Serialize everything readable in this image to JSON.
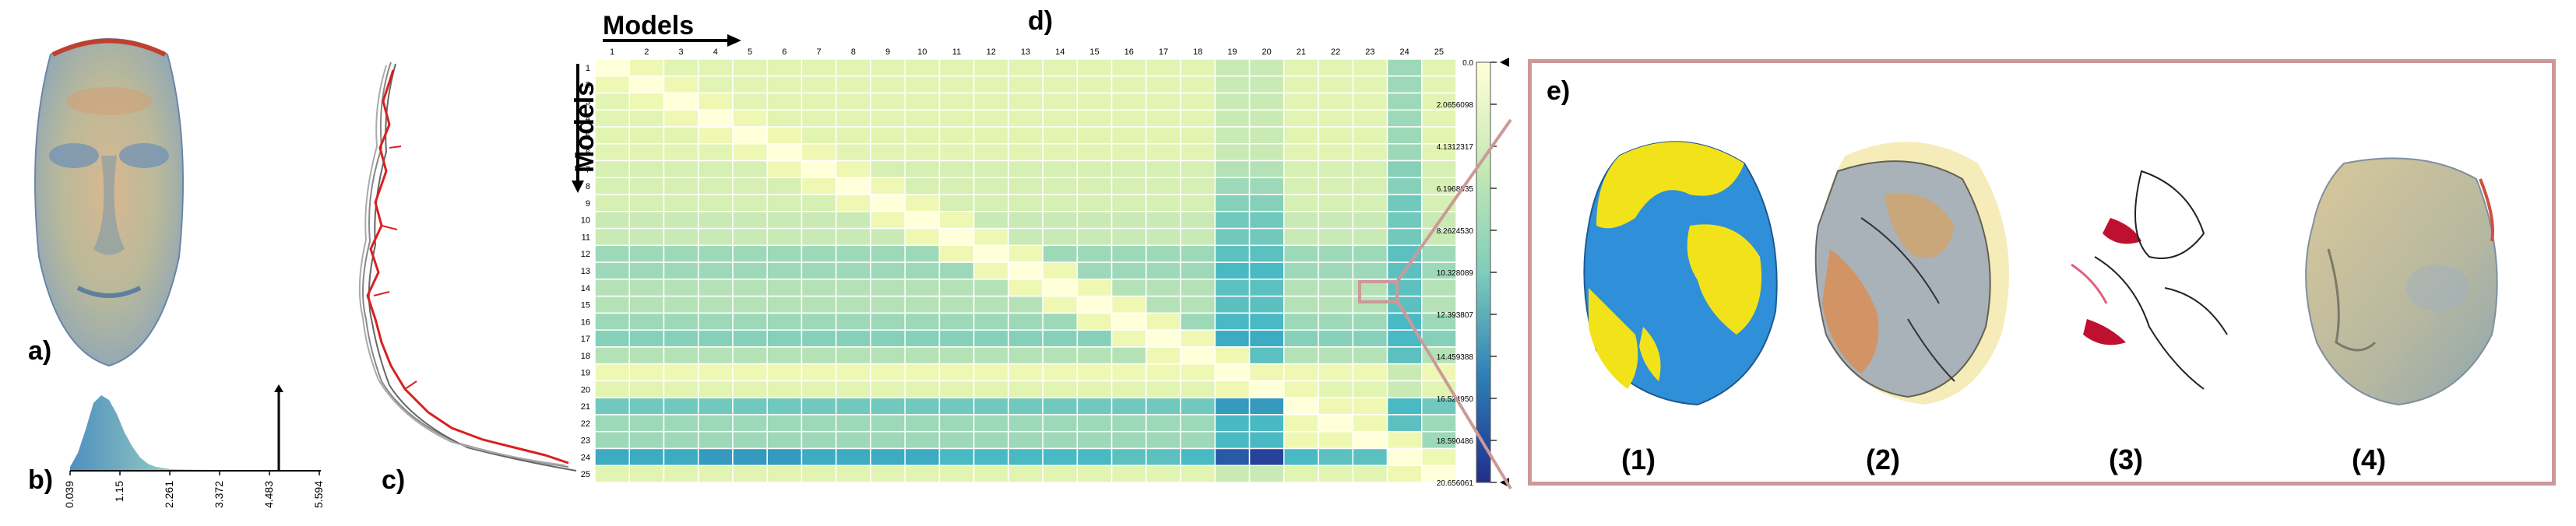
{
  "panels": {
    "a": "a)",
    "b": "b)",
    "c": "c)",
    "d": "d)",
    "e": "e)"
  },
  "histogram": {
    "ticks": [
      "0.039",
      "1.15",
      "2.261",
      "3.372",
      "4.483",
      "5.594"
    ],
    "max_marker_value": 4.88
  },
  "heatmap": {
    "x_title": "Models",
    "y_title": "Models",
    "labels": [
      "1",
      "2",
      "3",
      "4",
      "5",
      "6",
      "7",
      "8",
      "9",
      "10",
      "11",
      "12",
      "13",
      "14",
      "15",
      "16",
      "17",
      "18",
      "19",
      "20",
      "21",
      "22",
      "23",
      "24",
      "25"
    ]
  },
  "colorbar": {
    "ticks": [
      "0.0",
      "2.0656098",
      "4.1312317",
      "6.1968035",
      "8.2624530",
      "10.328089",
      "12.393807",
      "14.459388",
      "16.524950",
      "18.590486",
      "20.656061"
    ]
  },
  "views": {
    "labels": [
      "(1)",
      "(2)",
      "(3)",
      "(4)"
    ]
  },
  "colors": {
    "face_yellow": "#f2e21a",
    "face_blue": "#2f8fd8",
    "accent_frame": "#cc9999",
    "heat_low": "#ffffd9",
    "heat_high": "#1f2f8a"
  },
  "chart_data": {
    "type": "heatmap",
    "x": [
      "1",
      "2",
      "3",
      "4",
      "5",
      "6",
      "7",
      "8",
      "9",
      "10",
      "11",
      "12",
      "13",
      "14",
      "15",
      "16",
      "17",
      "18",
      "19",
      "20",
      "21",
      "22",
      "23",
      "24",
      "25"
    ],
    "y": [
      "1",
      "2",
      "3",
      "4",
      "5",
      "6",
      "7",
      "8",
      "9",
      "10",
      "11",
      "12",
      "13",
      "14",
      "15",
      "16",
      "17",
      "18",
      "19",
      "20",
      "21",
      "22",
      "23",
      "24",
      "25"
    ],
    "value_range": [
      0.0,
      20.656061
    ],
    "values": [
      [
        0,
        3,
        4,
        4,
        4,
        4,
        4,
        4,
        4,
        4,
        4,
        4,
        4,
        4,
        4,
        4,
        4,
        4,
        6,
        6,
        4,
        4,
        4,
        8,
        4
      ],
      [
        3,
        0,
        3,
        4,
        4,
        4,
        4,
        4,
        4,
        4,
        4,
        4,
        4,
        4,
        4,
        4,
        4,
        4,
        6,
        6,
        4,
        4,
        4,
        8,
        4
      ],
      [
        4,
        3,
        0,
        3,
        4,
        4,
        4,
        4,
        4,
        4,
        4,
        4,
        4,
        4,
        4,
        4,
        4,
        4,
        6,
        6,
        4,
        4,
        4,
        8,
        4
      ],
      [
        4,
        4,
        3,
        0,
        3,
        4,
        4,
        4,
        4,
        4,
        4,
        4,
        4,
        4,
        4,
        4,
        4,
        4,
        6,
        6,
        4,
        4,
        4,
        8,
        4
      ],
      [
        4,
        4,
        4,
        3,
        0,
        3,
        4,
        4,
        4,
        4,
        4,
        4,
        4,
        4,
        4,
        4,
        4,
        4,
        6,
        6,
        4,
        4,
        4,
        8,
        4
      ],
      [
        4,
        4,
        4,
        4,
        3,
        0,
        3,
        4,
        4,
        4,
        4,
        4,
        4,
        4,
        4,
        4,
        4,
        4,
        6,
        6,
        4,
        4,
        4,
        8,
        4
      ],
      [
        5,
        5,
        5,
        5,
        5,
        3,
        0,
        3,
        5,
        5,
        5,
        5,
        5,
        5,
        5,
        5,
        5,
        5,
        7,
        7,
        5,
        5,
        5,
        9,
        5
      ],
      [
        5,
        5,
        5,
        5,
        5,
        5,
        3,
        0,
        3,
        5,
        5,
        5,
        5,
        5,
        5,
        5,
        5,
        5,
        8,
        8,
        5,
        5,
        5,
        9,
        5
      ],
      [
        5,
        5,
        5,
        5,
        5,
        5,
        5,
        3,
        0,
        3,
        5,
        5,
        5,
        5,
        5,
        5,
        5,
        5,
        9,
        9,
        5,
        5,
        5,
        10,
        5
      ],
      [
        6,
        6,
        6,
        6,
        6,
        6,
        6,
        6,
        3,
        0,
        3,
        6,
        6,
        6,
        6,
        6,
        6,
        6,
        10,
        10,
        6,
        6,
        6,
        10,
        6
      ],
      [
        6,
        6,
        6,
        6,
        6,
        6,
        6,
        6,
        6,
        3,
        0,
        3,
        6,
        6,
        6,
        6,
        6,
        6,
        10,
        10,
        6,
        6,
        6,
        10,
        6
      ],
      [
        8,
        8,
        8,
        8,
        8,
        8,
        8,
        8,
        8,
        8,
        3,
        0,
        3,
        8,
        8,
        8,
        8,
        8,
        11,
        11,
        8,
        8,
        8,
        11,
        8
      ],
      [
        8,
        8,
        8,
        8,
        8,
        8,
        8,
        8,
        8,
        8,
        8,
        3,
        0,
        3,
        8,
        8,
        8,
        8,
        12,
        12,
        8,
        8,
        8,
        11,
        8
      ],
      [
        7,
        7,
        7,
        7,
        7,
        7,
        7,
        7,
        7,
        7,
        7,
        7,
        3,
        0,
        3,
        7,
        7,
        7,
        11,
        11,
        7,
        7,
        7,
        11,
        7
      ],
      [
        7,
        7,
        7,
        7,
        7,
        7,
        7,
        7,
        7,
        7,
        7,
        7,
        7,
        3,
        0,
        3,
        7,
        7,
        11,
        11,
        7,
        7,
        7,
        11,
        7
      ],
      [
        8,
        8,
        8,
        8,
        8,
        8,
        8,
        8,
        8,
        8,
        8,
        8,
        8,
        8,
        3,
        0,
        3,
        8,
        12,
        12,
        8,
        8,
        8,
        12,
        8
      ],
      [
        9,
        9,
        9,
        9,
        9,
        9,
        9,
        9,
        9,
        9,
        9,
        9,
        9,
        9,
        9,
        3,
        0,
        3,
        13,
        13,
        9,
        9,
        9,
        12,
        9
      ],
      [
        7,
        7,
        7,
        7,
        7,
        7,
        7,
        7,
        7,
        7,
        7,
        7,
        7,
        7,
        7,
        7,
        3,
        0,
        3,
        11,
        7,
        7,
        7,
        11,
        7
      ],
      [
        3,
        3,
        3,
        3,
        3,
        3,
        3,
        3,
        3,
        3,
        3,
        3,
        3,
        3,
        3,
        3,
        3,
        3,
        0,
        3,
        3,
        3,
        3,
        6,
        3
      ],
      [
        4,
        4,
        4,
        4,
        4,
        4,
        4,
        4,
        4,
        4,
        4,
        4,
        4,
        4,
        4,
        4,
        4,
        4,
        3,
        0,
        3,
        4,
        4,
        6,
        4
      ],
      [
        10,
        10,
        10,
        10,
        10,
        10,
        10,
        10,
        10,
        10,
        10,
        10,
        10,
        10,
        10,
        10,
        10,
        10,
        14,
        14,
        0,
        3,
        3,
        12,
        10
      ],
      [
        8,
        8,
        8,
        8,
        8,
        8,
        8,
        8,
        8,
        8,
        8,
        8,
        8,
        8,
        8,
        8,
        8,
        8,
        12,
        12,
        3,
        0,
        3,
        11,
        8
      ],
      [
        8,
        8,
        8,
        8,
        8,
        8,
        8,
        8,
        8,
        8,
        8,
        8,
        8,
        8,
        8,
        8,
        8,
        8,
        12,
        12,
        3,
        3,
        0,
        3,
        8
      ],
      [
        13,
        13,
        13,
        14,
        14,
        14,
        13,
        13,
        13,
        13,
        12,
        12,
        12,
        12,
        12,
        11,
        11,
        12,
        17,
        18,
        12,
        11,
        11,
        0,
        3
      ],
      [
        4,
        4,
        4,
        4,
        4,
        4,
        4,
        4,
        4,
        4,
        4,
        4,
        4,
        4,
        4,
        4,
        4,
        4,
        6,
        6,
        4,
        4,
        4,
        3,
        0
      ]
    ]
  }
}
